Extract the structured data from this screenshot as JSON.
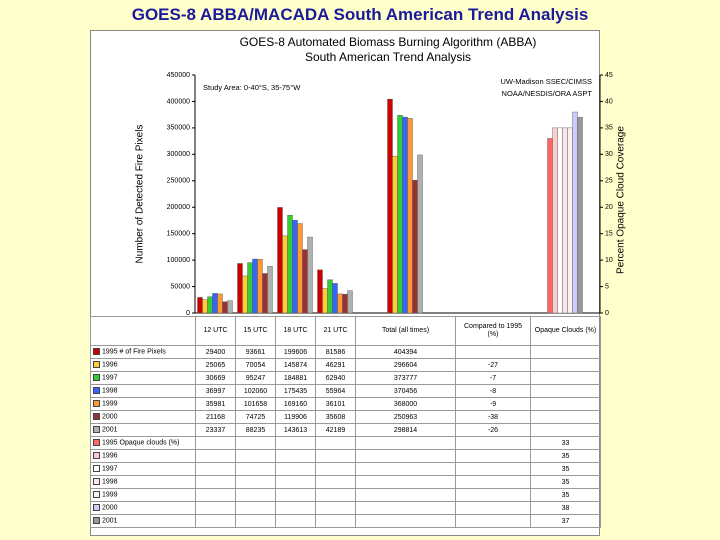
{
  "page_title": "GOES-8 ABBA/MACADA South American Trend Analysis",
  "chart_data": {
    "type": "bar",
    "title": "GOES-8 Automated Biomass Burning Algorithm (ABBA)",
    "subtitle": "South American Trend Analysis",
    "annotations": [
      "Study Area: 0-40°S, 35-75°W",
      "UW-Madison SSEC/CIMSS",
      "NOAA/NESDIS/ORA  ASPT"
    ],
    "ylabel": "Number of Detected Fire Pixels",
    "y2label": "Percent Opaque Cloud Coverage",
    "categories": [
      "12 UTC",
      "15 UTC",
      "18 UTC",
      "21 UTC",
      "Total (all times)"
    ],
    "change_header": "Compared to 1995 (%)",
    "cloud_header": "Opaque Clouds (%)",
    "ylim": [
      0,
      450000
    ],
    "yticks": [
      0,
      50000,
      100000,
      150000,
      200000,
      250000,
      300000,
      350000,
      400000,
      450000
    ],
    "y2lim": [
      0,
      45
    ],
    "y2ticks": [
      0,
      5,
      10,
      15,
      20,
      25,
      30,
      35,
      40,
      45
    ],
    "series": [
      {
        "name": "1995 # of Fire Pixels",
        "color": "#cc0000",
        "values": [
          29400,
          93661,
          199606,
          81586,
          404394
        ],
        "change": null
      },
      {
        "name": "1996",
        "color": "#ffcc33",
        "values": [
          25065,
          70054,
          145874,
          46291,
          296604
        ],
        "change": -27
      },
      {
        "name": "1997",
        "color": "#33cc33",
        "values": [
          30669,
          95247,
          184881,
          62940,
          373777
        ],
        "change": -7
      },
      {
        "name": "1998",
        "color": "#3366ff",
        "values": [
          36997,
          102060,
          175435,
          55964,
          370456
        ],
        "change": -8
      },
      {
        "name": "1999",
        "color": "#ff9933",
        "values": [
          35981,
          101658,
          169160,
          36101,
          368000
        ],
        "change": -9
      },
      {
        "name": "2000",
        "color": "#993333",
        "values": [
          21168,
          74725,
          119906,
          35608,
          250963
        ],
        "change": -38
      },
      {
        "name": "2001",
        "color": "#b0b0b0",
        "values": [
          23337,
          88235,
          143613,
          42189,
          298814
        ],
        "change": -26
      }
    ],
    "cloud_series": [
      {
        "name": "1995 Opaque clouds (%)",
        "color": "#ff6666",
        "value": 33,
        "axis": "y2"
      },
      {
        "name": "1996",
        "color": "#ffcccc",
        "value": 35,
        "axis": "y2"
      },
      {
        "name": "1997",
        "color": "#ffffff",
        "value": 35,
        "axis": "y2"
      },
      {
        "name": "1998",
        "color": "#ffe6e6",
        "value": 35,
        "axis": "y2"
      },
      {
        "name": "1999",
        "color": "#fff0f0",
        "value": 35,
        "axis": "y2"
      },
      {
        "name": "2000",
        "color": "#ccccff",
        "value": 38,
        "axis": "y2"
      },
      {
        "name": "2001",
        "color": "#999999",
        "value": 37,
        "axis": "y2"
      }
    ]
  }
}
